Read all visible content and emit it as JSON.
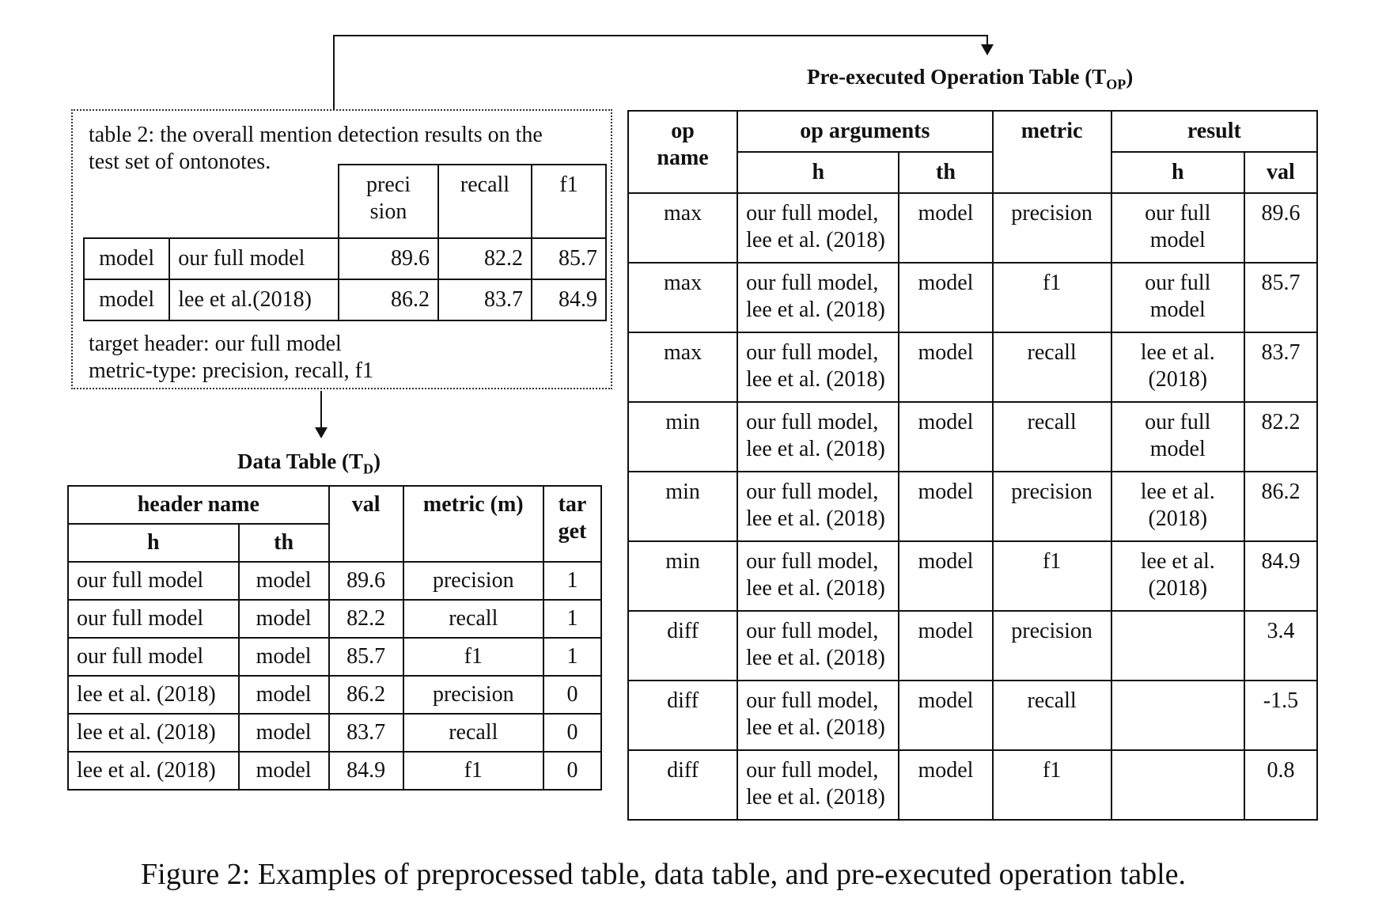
{
  "snippet": {
    "caption_line1": "table 2: the overall mention detection results on the",
    "caption_line2": "test set of ontonotes.",
    "col_headers": [
      "preci\nsion",
      "recall",
      "f1"
    ],
    "rows": [
      {
        "cells": [
          "model",
          "our full model",
          "89.6",
          "82.2",
          "85.7"
        ]
      },
      {
        "cells": [
          "model",
          "lee et al.(2018)",
          "86.2",
          "83.7",
          "84.9"
        ]
      }
    ],
    "target_header": "target header: our full model",
    "metric_type": "metric-type:  precision, recall, f1"
  },
  "data_table": {
    "title": "Data Table (T",
    "title_sub": "D",
    "title_end": ")",
    "headers": {
      "header_name": "header name",
      "h": "h",
      "th": "th",
      "val": "val",
      "metric": "metric (m)",
      "target": "tar get"
    },
    "rows": [
      [
        "our full model",
        "model",
        "89.6",
        "precision",
        "1"
      ],
      [
        "our full model",
        "model",
        "82.2",
        "recall",
        "1"
      ],
      [
        "our full model",
        "model",
        "85.7",
        "f1",
        "1"
      ],
      [
        "lee et al. (2018)",
        "model",
        "86.2",
        "precision",
        "0"
      ],
      [
        "lee et al. (2018)",
        "model",
        "83.7",
        "recall",
        "0"
      ],
      [
        "lee et al. (2018)",
        "model",
        "84.9",
        "f1",
        "0"
      ]
    ]
  },
  "op_table": {
    "title": "Pre-executed  Operation  Table (T",
    "title_sub": "OP",
    "title_end": ")",
    "headers": {
      "op_name": "op name",
      "op_arguments": "op arguments",
      "h": "h",
      "th": "th",
      "metric": "metric",
      "result": "result",
      "result_h": "h",
      "val": "val"
    },
    "rows": [
      [
        "max",
        "our full model, lee et al. (2018)",
        "model",
        "precision",
        "our full model",
        "89.6"
      ],
      [
        "max",
        "our full model, lee et al. (2018)",
        "model",
        "f1",
        "our full model",
        "85.7"
      ],
      [
        "max",
        "our full model, lee et al. (2018)",
        "model",
        "recall",
        "lee et al. (2018)",
        "83.7"
      ],
      [
        "min",
        "our full model, lee et al. (2018)",
        "model",
        "recall",
        "our full model",
        "82.2"
      ],
      [
        "min",
        "our full model, lee et al. (2018)",
        "model",
        "precision",
        "lee et al. (2018)",
        "86.2"
      ],
      [
        "min",
        "our full model, lee et al. (2018)",
        "model",
        "f1",
        "lee et al. (2018)",
        "84.9"
      ],
      [
        "diff",
        "our full model, lee et al. (2018)",
        "model",
        "precision",
        "",
        "3.4"
      ],
      [
        "diff",
        "our full model, lee et al. (2018)",
        "model",
        "recall",
        "",
        "-1.5"
      ],
      [
        "diff",
        "our full model, lee et al. (2018)",
        "model",
        "f1",
        "",
        "0.8"
      ]
    ]
  },
  "figure_caption": "Figure 2: Examples of preprocessed table, data table, and pre-executed operation table."
}
